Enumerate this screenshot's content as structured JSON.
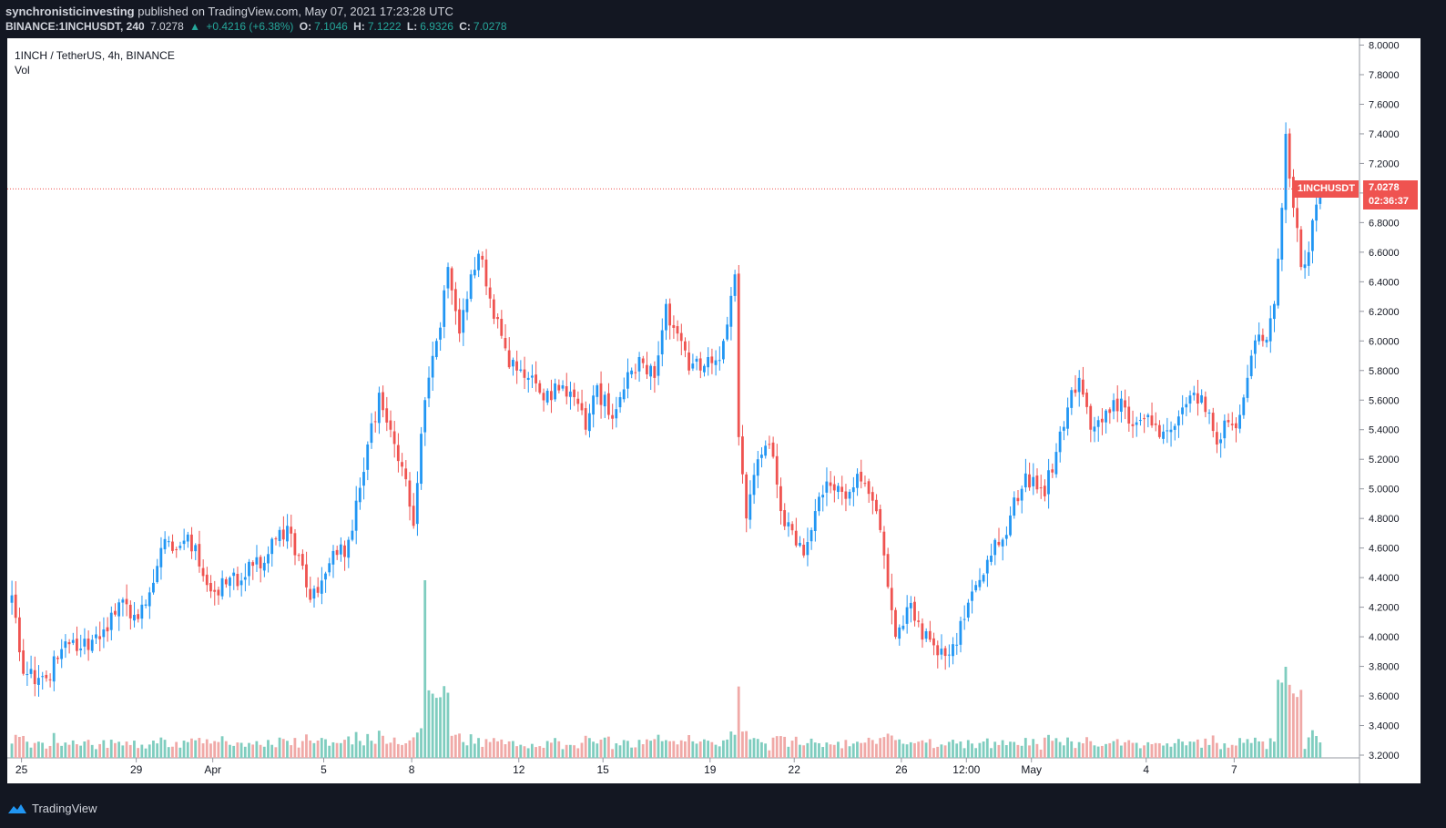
{
  "header": {
    "author": "synchronisticinvesting",
    "published_text": "published on TradingView.com, May 07, 2021 17:23:28 UTC",
    "symbol_line": "BINANCE:1INCHUSDT, 240",
    "last_price": "7.0278",
    "change_text": "+0.4216 (+6.38%)",
    "o_label": "O:",
    "o_value": "7.1046",
    "h_label": "H:",
    "h_value": "7.1222",
    "l_label": "L:",
    "l_value": "6.9326",
    "c_label": "C:",
    "c_value": "7.0278"
  },
  "legend": {
    "title": "1INCH / TetherUS, 4h, BINANCE",
    "volume": "Vol"
  },
  "price_label": {
    "symbol": "1INCHUSDT",
    "price": "7.0278",
    "countdown": "02:36:37"
  },
  "footer": {
    "brand": "TradingView"
  },
  "colors": {
    "up": "#2196f3",
    "down": "#ef5350",
    "vol_up": "#7fcdbf",
    "vol_down": "#f0a9a7",
    "background": "#ffffff",
    "frame": "#131722"
  },
  "chart_data": {
    "type": "candlestick",
    "symbol": "1INCHUSDT",
    "interval": "4h",
    "y_axis_ticks": [
      "8.0000",
      "7.8000",
      "7.6000",
      "7.4000",
      "7.2000",
      "7.0000",
      "6.8000",
      "6.6000",
      "6.4000",
      "6.2000",
      "6.0000",
      "5.8000",
      "5.6000",
      "5.4000",
      "5.2000",
      "5.0000",
      "4.8000",
      "4.6000",
      "4.4000",
      "4.2000",
      "4.0000",
      "3.8000",
      "3.6000",
      "3.4000",
      "3.2000"
    ],
    "ylim": [
      3.2,
      8.0
    ],
    "x_axis_ticks": [
      "25",
      "29",
      "Apr",
      "5",
      "8",
      "12",
      "15",
      "19",
      "22",
      "26",
      "12:00",
      "May",
      "4",
      "7"
    ],
    "current_price": 7.0278,
    "anchor_closes": [
      [
        0,
        4.28
      ],
      [
        3,
        3.75
      ],
      [
        6,
        3.68
      ],
      [
        9,
        3.72
      ],
      [
        12,
        3.85
      ],
      [
        15,
        3.95
      ],
      [
        18,
        3.92
      ],
      [
        21,
        3.98
      ],
      [
        24,
        4.05
      ],
      [
        27,
        4.15
      ],
      [
        30,
        4.22
      ],
      [
        33,
        4.12
      ],
      [
        36,
        4.3
      ],
      [
        39,
        4.6
      ],
      [
        42,
        4.58
      ],
      [
        45,
        4.65
      ],
      [
        48,
        4.62
      ],
      [
        51,
        4.35
      ],
      [
        54,
        4.28
      ],
      [
        57,
        4.4
      ],
      [
        60,
        4.38
      ],
      [
        63,
        4.48
      ],
      [
        66,
        4.5
      ],
      [
        69,
        4.66
      ],
      [
        72,
        4.75
      ],
      [
        75,
        4.55
      ],
      [
        78,
        4.25
      ],
      [
        81,
        4.38
      ],
      [
        84,
        4.58
      ],
      [
        87,
        4.54
      ],
      [
        90,
        4.92
      ],
      [
        93,
        5.3
      ],
      [
        96,
        5.65
      ],
      [
        99,
        5.4
      ],
      [
        102,
        5.15
      ],
      [
        105,
        4.75
      ],
      [
        108,
        5.6
      ],
      [
        111,
        6.0
      ],
      [
        114,
        6.5
      ],
      [
        117,
        6.05
      ],
      [
        120,
        6.45
      ],
      [
        123,
        6.55
      ],
      [
        126,
        6.15
      ],
      [
        129,
        5.95
      ],
      [
        132,
        5.8
      ],
      [
        135,
        5.75
      ],
      [
        138,
        5.65
      ],
      [
        141,
        5.6
      ],
      [
        144,
        5.7
      ],
      [
        147,
        5.62
      ],
      [
        150,
        5.4
      ],
      [
        153,
        5.7
      ],
      [
        156,
        5.5
      ],
      [
        159,
        5.62
      ],
      [
        162,
        5.8
      ],
      [
        165,
        5.85
      ],
      [
        168,
        5.75
      ],
      [
        171,
        6.25
      ],
      [
        174,
        6.05
      ],
      [
        177,
        5.8
      ],
      [
        180,
        5.8
      ],
      [
        183,
        5.85
      ],
      [
        186,
        6.0
      ],
      [
        189,
        6.45
      ],
      [
        190,
        5.35
      ],
      [
        192,
        4.8
      ],
      [
        195,
        5.2
      ],
      [
        198,
        5.3
      ],
      [
        201,
        4.85
      ],
      [
        204,
        4.72
      ],
      [
        207,
        4.55
      ],
      [
        210,
        4.85
      ],
      [
        213,
        5.05
      ],
      [
        216,
        5.02
      ],
      [
        219,
        4.98
      ],
      [
        222,
        5.05
      ],
      [
        225,
        4.92
      ],
      [
        228,
        4.55
      ],
      [
        231,
        4.0
      ],
      [
        234,
        4.2
      ],
      [
        237,
        4.1
      ],
      [
        240,
        3.98
      ],
      [
        243,
        3.92
      ],
      [
        246,
        3.95
      ],
      [
        249,
        4.12
      ],
      [
        252,
        4.35
      ],
      [
        255,
        4.52
      ],
      [
        258,
        4.62
      ],
      [
        261,
        4.82
      ],
      [
        264,
        5.0
      ],
      [
        267,
        5.08
      ],
      [
        270,
        4.95
      ],
      [
        273,
        5.25
      ],
      [
        276,
        5.55
      ],
      [
        279,
        5.75
      ],
      [
        282,
        5.4
      ],
      [
        285,
        5.45
      ],
      [
        288,
        5.6
      ],
      [
        291,
        5.55
      ],
      [
        294,
        5.45
      ],
      [
        297,
        5.5
      ],
      [
        300,
        5.35
      ],
      [
        303,
        5.4
      ],
      [
        306,
        5.55
      ],
      [
        309,
        5.65
      ],
      [
        312,
        5.52
      ],
      [
        315,
        5.3
      ],
      [
        318,
        5.45
      ],
      [
        321,
        5.5
      ],
      [
        324,
        5.9
      ],
      [
        327,
        6.0
      ],
      [
        330,
        6.25
      ],
      [
        332,
        6.9
      ],
      [
        333,
        7.4
      ],
      [
        335,
        6.9
      ],
      [
        337,
        6.5
      ],
      [
        339,
        6.6
      ],
      [
        342,
        7.03
      ]
    ],
    "volume_spikes": [
      {
        "bar": 108,
        "label": "largest volume bar, Apr 8"
      },
      {
        "bar": 333,
        "label": "May 6 volume spike"
      }
    ]
  }
}
